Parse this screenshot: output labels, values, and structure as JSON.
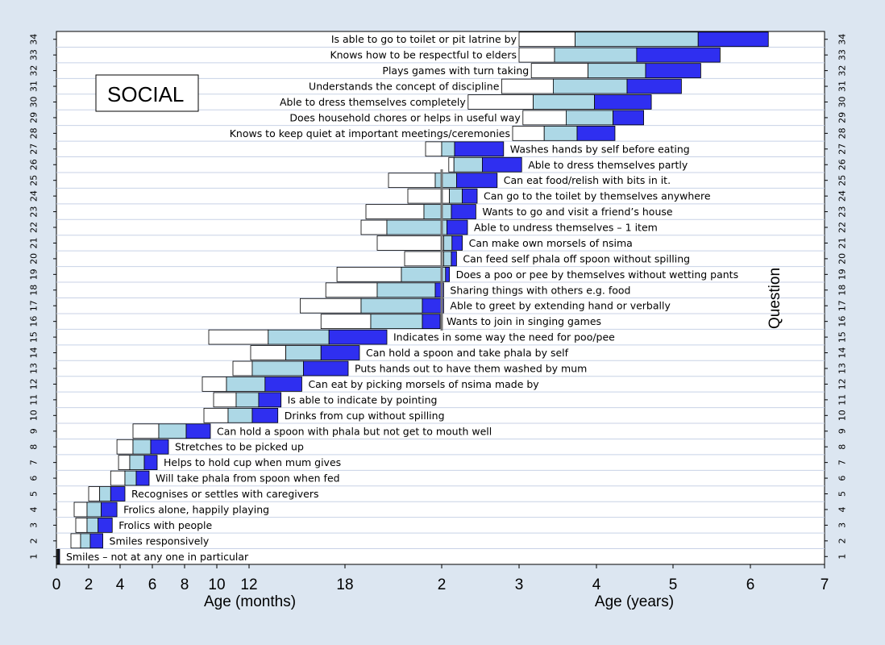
{
  "chart_data": {
    "type": "bar",
    "subtype": "stacked-horizontal-range",
    "title": "SOCIAL",
    "xlabel_left": "Age (months)",
    "xlabel_right": "Age (years)",
    "ylabel": "Question",
    "x_ticks_months": [
      0,
      2,
      4,
      6,
      8,
      10,
      12,
      18
    ],
    "x_ticks_years": [
      2,
      3,
      4,
      5,
      6,
      7
    ],
    "y_ticks": [
      1,
      2,
      3,
      4,
      5,
      6,
      7,
      8,
      9,
      10,
      11,
      12,
      13,
      14,
      15,
      16,
      17,
      18,
      19,
      20,
      21,
      22,
      23,
      24,
      25,
      26,
      27,
      28,
      29,
      30,
      31,
      32,
      33,
      34
    ],
    "colors": {
      "white": "#ffffff",
      "light": "#add8e6",
      "dark": "#2f2ff0",
      "background": "#dce6f1",
      "plot": "#ffffff"
    },
    "items": [
      {
        "q": 1,
        "label": "Smiles – not at any one in particular",
        "b": [
          0.05,
          0.1,
          0.15,
          0.2
        ]
      },
      {
        "q": 2,
        "label": "Smiles responsively",
        "b": [
          0.9,
          1.5,
          2.1,
          2.9
        ]
      },
      {
        "q": 3,
        "label": "Frolics with people",
        "b": [
          1.2,
          1.9,
          2.6,
          3.5
        ]
      },
      {
        "q": 4,
        "label": "Frolics alone, happily playing",
        "b": [
          1.1,
          1.9,
          2.8,
          3.8
        ]
      },
      {
        "q": 5,
        "label": "Recognises or settles with caregivers",
        "b": [
          2.0,
          2.7,
          3.4,
          4.3
        ]
      },
      {
        "q": 6,
        "label": "Will take phala from spoon when fed",
        "b": [
          3.4,
          4.3,
          5.0,
          5.8
        ]
      },
      {
        "q": 7,
        "label": "Helps to hold cup when mum gives",
        "b": [
          3.9,
          4.6,
          5.5,
          6.3
        ]
      },
      {
        "q": 8,
        "label": "Stretches to be picked up",
        "b": [
          3.8,
          4.8,
          5.9,
          7.0
        ]
      },
      {
        "q": 9,
        "label": "Can hold a spoon with phala but not get to mouth well",
        "b": [
          4.8,
          6.4,
          8.1,
          9.6
        ]
      },
      {
        "q": 10,
        "label": "Drinks from cup without spilling",
        "b": [
          9.2,
          10.7,
          12.2,
          13.8
        ]
      },
      {
        "q": 11,
        "label": "Is able to indicate by pointing",
        "b": [
          9.8,
          11.2,
          12.6,
          14.0
        ]
      },
      {
        "q": 12,
        "label": "Can eat by picking morsels of nsima made by",
        "b": [
          9.1,
          10.6,
          13.0,
          15.3
        ]
      },
      {
        "q": 13,
        "label": "Puts hands out to have them washed by mum",
        "b": [
          11.0,
          12.2,
          15.4,
          18.2
        ]
      },
      {
        "q": 14,
        "label": "Can hold a spoon and take phala by self",
        "b": [
          12.1,
          14.3,
          16.5,
          18.9
        ]
      },
      {
        "q": 15,
        "label": "Indicates in some way the need for poo/pee",
        "b": [
          9.5,
          13.2,
          17.0,
          20.6
        ]
      },
      {
        "q": 16,
        "label": "Wants to join in singing games",
        "b": [
          16.5,
          19.6,
          22.8,
          23.9
        ]
      },
      {
        "q": 17,
        "label": "Able to greet by extending hand or verbally",
        "b": [
          15.2,
          19.0,
          22.8,
          24.3
        ]
      },
      {
        "q": 18,
        "label": "Sharing things with others e.g. food",
        "b": [
          16.8,
          20.0,
          23.6,
          24.3
        ]
      },
      {
        "q": 19,
        "label": "Does a poo or pee by themselves without wetting pants",
        "b": [
          17.5,
          21.5,
          24.6,
          25.2
        ]
      },
      {
        "q": 20,
        "label": "Can feed self phala off spoon without spilling",
        "b": [
          21.7,
          24.3,
          25.5,
          26.3
        ]
      },
      {
        "q": 21,
        "label": "Can make own morsels of nsima",
        "b": [
          20.0,
          24.3,
          25.6,
          27.2
        ]
      },
      {
        "q": 22,
        "label": "Able to undress themselves – 1 item",
        "b": [
          19.0,
          20.6,
          24.8,
          28.0
        ]
      },
      {
        "q": 23,
        "label": "Wants to go and visit a friend’s house",
        "b": [
          19.3,
          22.9,
          25.5,
          29.3
        ]
      },
      {
        "q": 24,
        "label": "Can go to the toilet by themselves anywhere",
        "b": [
          21.9,
          25.2,
          27.2,
          29.5
        ]
      },
      {
        "q": 25,
        "label": "Can eat food/relish with bits in it.",
        "b": [
          20.7,
          23.6,
          26.3,
          32.6
        ]
      },
      {
        "q": 26,
        "label": "Able to dress themselves partly",
        "b": [
          25.1,
          25.9,
          30.3,
          36.4
        ]
      },
      {
        "q": 27,
        "label": "Washes hands by self before eating",
        "b": [
          23.0,
          24.0,
          26.0,
          33.6
        ]
      },
      {
        "q": 28,
        "label": "Knows to keep quiet at important meetings/ceremonies",
        "b": [
          35.0,
          39.9,
          45.0,
          50.9
        ]
      },
      {
        "q": 29,
        "label": "Does household chores or helps in useful way",
        "b": [
          36.6,
          43.3,
          50.6,
          55.4
        ]
      },
      {
        "q": 30,
        "label": "Able to dress themselves completely",
        "b": [
          28.1,
          38.2,
          47.7,
          56.6
        ]
      },
      {
        "q": 31,
        "label": "Understands the concept of discipline",
        "b": [
          33.3,
          41.3,
          52.8,
          61.3
        ]
      },
      {
        "q": 32,
        "label": "Plays games with turn taking",
        "b": [
          37.9,
          46.7,
          55.7,
          64.3
        ]
      },
      {
        "q": 33,
        "label": "Knows how to be respectful to elders",
        "b": [
          36.0,
          41.5,
          54.3,
          67.3
        ]
      },
      {
        "q": 34,
        "label": "Is able to go to toilet or pit latrine by",
        "b": [
          36.0,
          44.7,
          63.9,
          74.9
        ]
      }
    ]
  }
}
